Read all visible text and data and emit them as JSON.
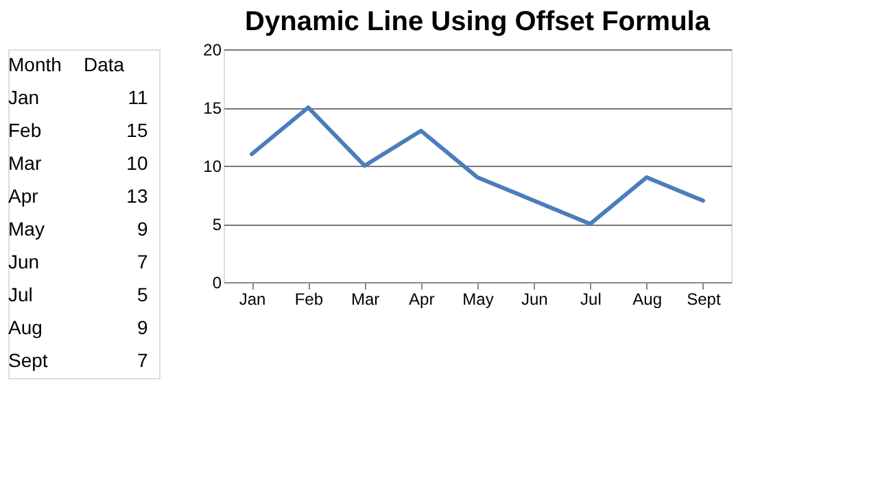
{
  "chart_data": [
    {
      "type": "other",
      "categories": [
        "Jan",
        "Feb",
        "Mar",
        "Apr",
        "May",
        "Jun",
        "Jul",
        "Aug",
        "Sept"
      ],
      "values": [
        11,
        15,
        10,
        13,
        9,
        7,
        5,
        9,
        7
      ],
      "data_labels": true,
      "annotations": [
        "Month",
        "Data"
      ]
    },
    {
      "type": "line",
      "title": "Dynamic Line Using Offset Formula",
      "categories": [
        "Jan",
        "Feb",
        "Mar",
        "Apr",
        "May",
        "Jun",
        "Jul",
        "Aug",
        "Sept"
      ],
      "series": [
        {
          "color": "#4a7ebb",
          "values": [
            11,
            15,
            10,
            13,
            9,
            7,
            5,
            9,
            7
          ]
        }
      ],
      "ylim": [
        0,
        20
      ],
      "yticks": [
        0,
        5,
        10,
        15,
        20
      ],
      "grid": "y",
      "marker": "none",
      "line_style": "solid"
    }
  ]
}
